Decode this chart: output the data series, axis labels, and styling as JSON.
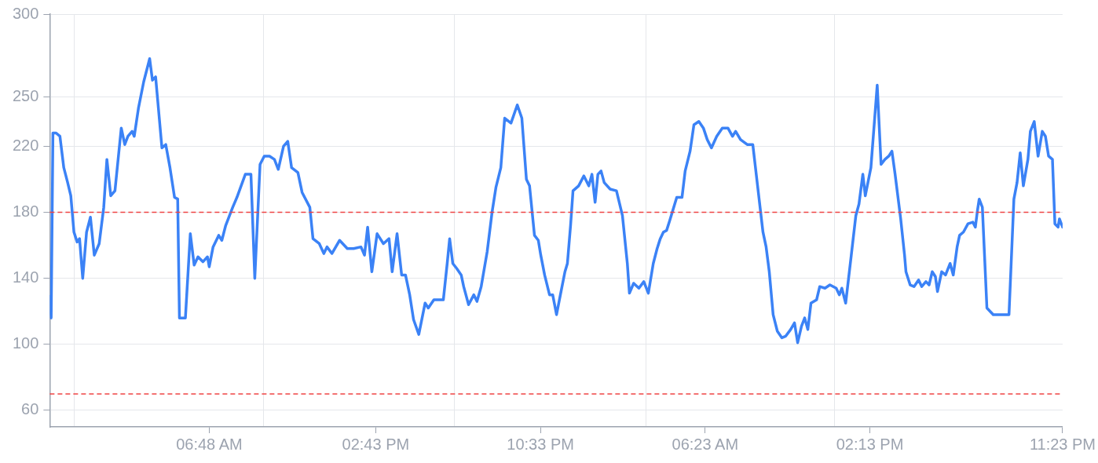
{
  "chart_data": {
    "type": "line",
    "x": [
      "--01-01T23:13",
      "--01-01T23:17",
      "--01-01T23:22",
      "--01-01T23:31",
      "--01-01T23:42",
      "--01-01T23:53",
      "--01-02T00:04",
      "--01-02T00:13",
      "--01-02T00:22",
      "--01-02T00:31",
      "--01-02T00:38",
      "--01-02T00:47",
      "--01-02T00:58",
      "--01-02T01:09",
      "--01-02T01:20",
      "--01-02T01:34",
      "--01-02T01:47",
      "--01-02T01:56",
      "--01-02T02:07",
      "--01-02T02:19",
      "--01-02T02:37",
      "--01-02T02:47",
      "--01-02T02:56",
      "--01-02T03:08",
      "--01-02T03:14",
      "--01-02T03:26",
      "--01-02T03:41",
      "--01-02T03:58",
      "--01-02T04:06",
      "--01-02T04:15",
      "--01-02T04:33",
      "--01-02T04:44",
      "--01-02T04:56",
      "--01-02T05:09",
      "--01-02T05:18",
      "--01-02T05:23",
      "--01-02T05:40",
      "--01-02T05:54",
      "--01-02T06:05",
      "--01-02T06:16",
      "--01-02T06:30",
      "--01-02T06:43",
      "--01-02T06:48",
      "--01-02T06:59",
      "--01-02T07:15",
      "--01-02T07:24",
      "--01-02T07:35",
      "--01-02T07:55",
      "--01-02T08:07",
      "--01-02T08:31",
      "--01-02T08:47",
      "--01-02T08:58",
      "--01-02T09:13",
      "--01-02T09:25",
      "--01-02T09:40",
      "--01-02T09:54",
      "--01-02T10:05",
      "--01-02T10:20",
      "--01-02T10:32",
      "--01-02T10:43",
      "--01-02T11:01",
      "--01-02T11:13",
      "--01-02T11:35",
      "--01-02T11:44",
      "--01-02T12:02",
      "--01-02T12:15",
      "--01-02T12:24",
      "--01-02T12:38",
      "--01-02T13:00",
      "--01-02T13:22",
      "--01-02T13:40",
      "--01-02T14:01",
      "--01-02T14:11",
      "--01-02T14:20",
      "--01-02T14:32",
      "--01-02T14:47",
      "--01-02T15:05",
      "--01-02T15:21",
      "--01-02T15:30",
      "--01-02T15:44",
      "--01-02T15:57",
      "--01-02T16:08",
      "--01-02T16:20",
      "--01-02T16:31",
      "--01-02T16:46",
      "--01-02T17:04",
      "--01-02T17:13",
      "--01-02T17:29",
      "--01-02T17:56",
      "--01-02T18:07",
      "--01-02T18:14",
      "--01-02T18:23",
      "--01-02T18:34",
      "--01-02T18:47",
      "--01-02T18:54",
      "--01-02T19:08",
      "--01-02T19:23",
      "--01-02T19:32",
      "--01-02T19:44",
      "--01-02T20:01",
      "--01-02T20:15",
      "--01-02T20:26",
      "--01-02T20:40",
      "--01-02T20:51",
      "--01-02T21:09",
      "--01-02T21:27",
      "--01-02T21:40",
      "--01-02T21:53",
      "--01-02T22:02",
      "--01-02T22:16",
      "--01-02T22:27",
      "--01-02T22:34",
      "--01-02T22:45",
      "--01-02T22:59",
      "--01-02T23:08",
      "--01-02T23:19",
      "--01-02T23:30",
      "--01-02T23:43",
      "--01-02T23:50",
      "--01-02T23:59",
      "--01-03T00:06",
      "--01-03T00:22",
      "--01-03T00:37",
      "--01-03T00:51",
      "--01-03T01:00",
      "--01-03T01:09",
      "--01-03T01:17",
      "--01-03T01:26",
      "--01-03T01:35",
      "--01-03T01:52",
      "--01-03T02:10",
      "--01-03T02:27",
      "--01-03T02:41",
      "--01-03T02:47",
      "--01-03T02:59",
      "--01-03T03:14",
      "--01-03T03:28",
      "--01-03T03:41",
      "--01-03T03:55",
      "--01-03T04:06",
      "--01-03T04:15",
      "--01-03T04:24",
      "--01-03T04:33",
      "--01-03T04:42",
      "--01-03T05:02",
      "--01-03T05:17",
      "--01-03T05:26",
      "--01-03T05:40",
      "--01-03T05:51",
      "--01-03T06:05",
      "--01-03T06:18",
      "--01-03T06:29",
      "--01-03T06:41",
      "--01-03T06:56",
      "--01-03T07:12",
      "--01-03T07:28",
      "--01-03T07:41",
      "--01-03T07:50",
      "--01-03T08:04",
      "--01-03T08:23",
      "--01-03T08:39",
      "--01-03T08:57",
      "--01-03T09:08",
      "--01-03T09:17",
      "--01-03T09:26",
      "--01-03T09:37",
      "--01-03T09:49",
      "--01-03T10:02",
      "--01-03T10:13",
      "--01-03T10:27",
      "--01-03T10:38",
      "--01-03T10:47",
      "--01-03T10:58",
      "--01-03T11:07",
      "--01-03T11:16",
      "--01-03T11:25",
      "--01-03T11:41",
      "--01-03T11:50",
      "--01-03T12:05",
      "--01-03T12:19",
      "--01-03T12:37",
      "--01-03T12:46",
      "--01-03T12:53",
      "--01-03T13:04",
      "--01-03T13:20",
      "--01-03T13:33",
      "--01-03T13:42",
      "--01-03T13:53",
      "--01-03T14:00",
      "--01-03T14:16",
      "--01-03T14:34",
      "--01-03T14:45",
      "--01-03T14:56",
      "--01-03T15:07",
      "--01-03T15:16",
      "--01-03T15:25",
      "--01-03T15:41",
      "--01-03T15:52",
      "--01-03T15:56",
      "--01-03T16:08",
      "--01-03T16:19",
      "--01-03T16:32",
      "--01-03T16:41",
      "--01-03T16:53",
      "--01-03T17:02",
      "--01-03T17:11",
      "--01-03T17:20",
      "--01-03T17:26",
      "--01-03T17:38",
      "--01-03T17:49",
      "--01-03T18:02",
      "--01-03T18:11",
      "--01-03T18:22",
      "--01-03T18:29",
      "--01-03T18:40",
      "--01-03T18:53",
      "--01-03T19:07",
      "--01-03T19:14",
      "--01-03T19:20",
      "--01-03T19:25",
      "--01-03T19:34",
      "--01-03T19:47",
      "--01-03T20:05",
      "--01-03T20:50",
      "--01-03T21:04",
      "--01-03T21:13",
      "--01-03T21:22",
      "--01-03T21:31",
      "--01-03T21:44",
      "--01-03T21:51",
      "--01-03T22:02",
      "--01-03T22:13",
      "--01-03T22:25",
      "--01-03T22:34",
      "--01-03T22:43",
      "--01-03T22:54",
      "--01-03T23:01",
      "--01-03T23:10",
      "--01-03T23:14",
      "--01-03T23:23"
    ],
    "series": [
      {
        "color": "#3b82f6",
        "values": [
          129,
          116,
          228,
          228,
          226,
          207,
          198,
          190,
          168,
          162,
          164,
          140,
          168,
          177,
          154,
          161,
          183,
          212,
          190,
          193,
          231,
          221,
          226,
          229,
          226,
          243,
          259,
          273,
          260,
          262,
          219,
          221,
          207,
          189,
          188,
          116,
          116,
          167,
          148,
          153,
          150,
          153,
          147,
          159,
          166,
          163,
          172,
          183,
          189,
          203,
          203,
          140,
          209,
          214,
          214,
          212,
          206,
          220,
          223,
          207,
          204,
          192,
          183,
          164,
          161,
          155,
          159,
          155,
          163,
          158,
          158,
          159,
          154,
          171,
          144,
          167,
          161,
          164,
          144,
          167,
          142,
          142,
          130,
          115,
          106,
          125,
          122,
          127,
          127,
          149,
          164,
          149,
          146,
          142,
          135,
          124,
          130,
          126,
          135,
          156,
          180,
          195,
          207,
          237,
          234,
          245,
          237,
          200,
          196,
          166,
          163,
          154,
          142,
          130,
          130,
          118,
          130,
          144,
          149,
          172,
          193,
          196,
          202,
          196,
          203,
          186,
          203,
          205,
          198,
          194,
          193,
          178,
          149,
          131,
          137,
          134,
          138,
          131,
          149,
          158,
          164,
          168,
          169,
          175,
          189,
          189,
          205,
          217,
          233,
          235,
          231,
          224,
          219,
          226,
          231,
          231,
          226,
          229,
          224,
          221,
          221,
          188,
          168,
          159,
          144,
          118,
          108,
          104,
          105,
          109,
          113,
          101,
          111,
          116,
          109,
          125,
          127,
          135,
          134,
          136,
          134,
          130,
          134,
          125,
          154,
          178,
          185,
          203,
          190,
          207,
          257,
          209,
          212,
          214,
          217,
          203,
          176,
          154,
          144,
          136,
          135,
          139,
          135,
          138,
          136,
          144,
          141,
          132,
          144,
          142,
          149,
          142,
          159,
          166,
          168,
          173,
          174,
          171,
          181,
          188,
          183,
          122,
          118,
          118,
          188,
          198,
          216,
          196,
          212,
          229,
          235,
          214,
          229,
          226,
          214,
          212,
          173,
          171,
          176,
          171
        ]
      }
    ],
    "xlim": [
      "--01-01T23:13",
      "--01-03T23:23"
    ],
    "xticks": [
      {
        "value": "--01-02T00:22",
        "label": null
      },
      {
        "value": "--01-02T06:48",
        "label": "06:48 AM"
      },
      {
        "value": "--01-02T09:22",
        "label": null
      },
      {
        "value": "--01-02T14:43",
        "label": "02:43 PM"
      },
      {
        "value": "--01-02T18:27",
        "label": null
      },
      {
        "value": "--01-02T22:33",
        "label": "10:33 PM"
      },
      {
        "value": "--01-03T03:34",
        "label": null
      },
      {
        "value": "--01-03T06:23",
        "label": "06:23 AM"
      },
      {
        "value": "--01-03T12:32",
        "label": null
      },
      {
        "value": "--01-03T14:13",
        "label": "02:13 PM"
      },
      {
        "value": "--01-03T23:23",
        "label": "11:23 PM"
      }
    ],
    "ylim": [
      50,
      300
    ],
    "yticks": [
      60,
      100,
      140,
      180,
      220,
      250,
      300
    ],
    "grid": true,
    "marker": "none",
    "line_style": "solid",
    "ref_lines": [
      {
        "axis": "y",
        "value": 180,
        "color": "#ef4444",
        "line_style": "dashed"
      },
      {
        "axis": "y",
        "value": 70,
        "color": "#ef4444",
        "line_style": "dashed"
      }
    ]
  }
}
